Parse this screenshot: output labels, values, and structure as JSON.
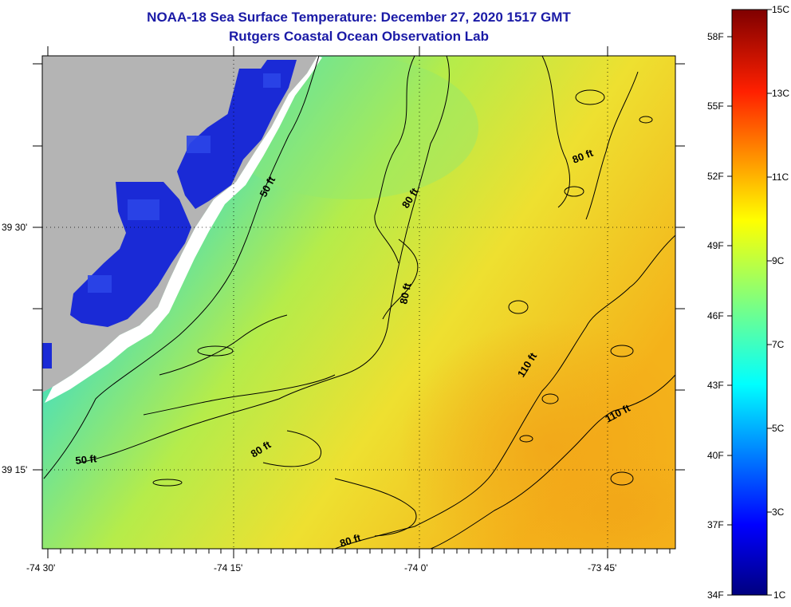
{
  "title_line1": "NOAA-18 Sea Surface Temperature:  December 27, 2020 1517 GMT",
  "title_line2": "Rutgers Coastal Ocean Observation Lab",
  "longitude_labels": [
    "-74 30'",
    "-74 15'",
    "-74 0'",
    "-73 45'"
  ],
  "latitude_labels": [
    "39 30'",
    "39 15'"
  ],
  "contour_labels": [
    "50 ft",
    "50 ft",
    "80 ft",
    "80 ft",
    "80 ft",
    "80 ft",
    "80 ft",
    "110 ft",
    "110 ft"
  ],
  "colorbar": {
    "celsius_labels": [
      "15C",
      "13C",
      "11C",
      "9C",
      "7C",
      "5C",
      "3C",
      "1C"
    ],
    "fahrenheit_labels": [
      "58F",
      "55F",
      "52F",
      "49F",
      "46F",
      "43F",
      "40F",
      "37F",
      "34F"
    ],
    "range_c": [
      1,
      15
    ]
  },
  "colors": {
    "title": "#1a1aa6",
    "land": "#b4b4b4",
    "cold": "#1a2ad6",
    "mid": "#7fe47a",
    "warm": "#f4b21a"
  }
}
